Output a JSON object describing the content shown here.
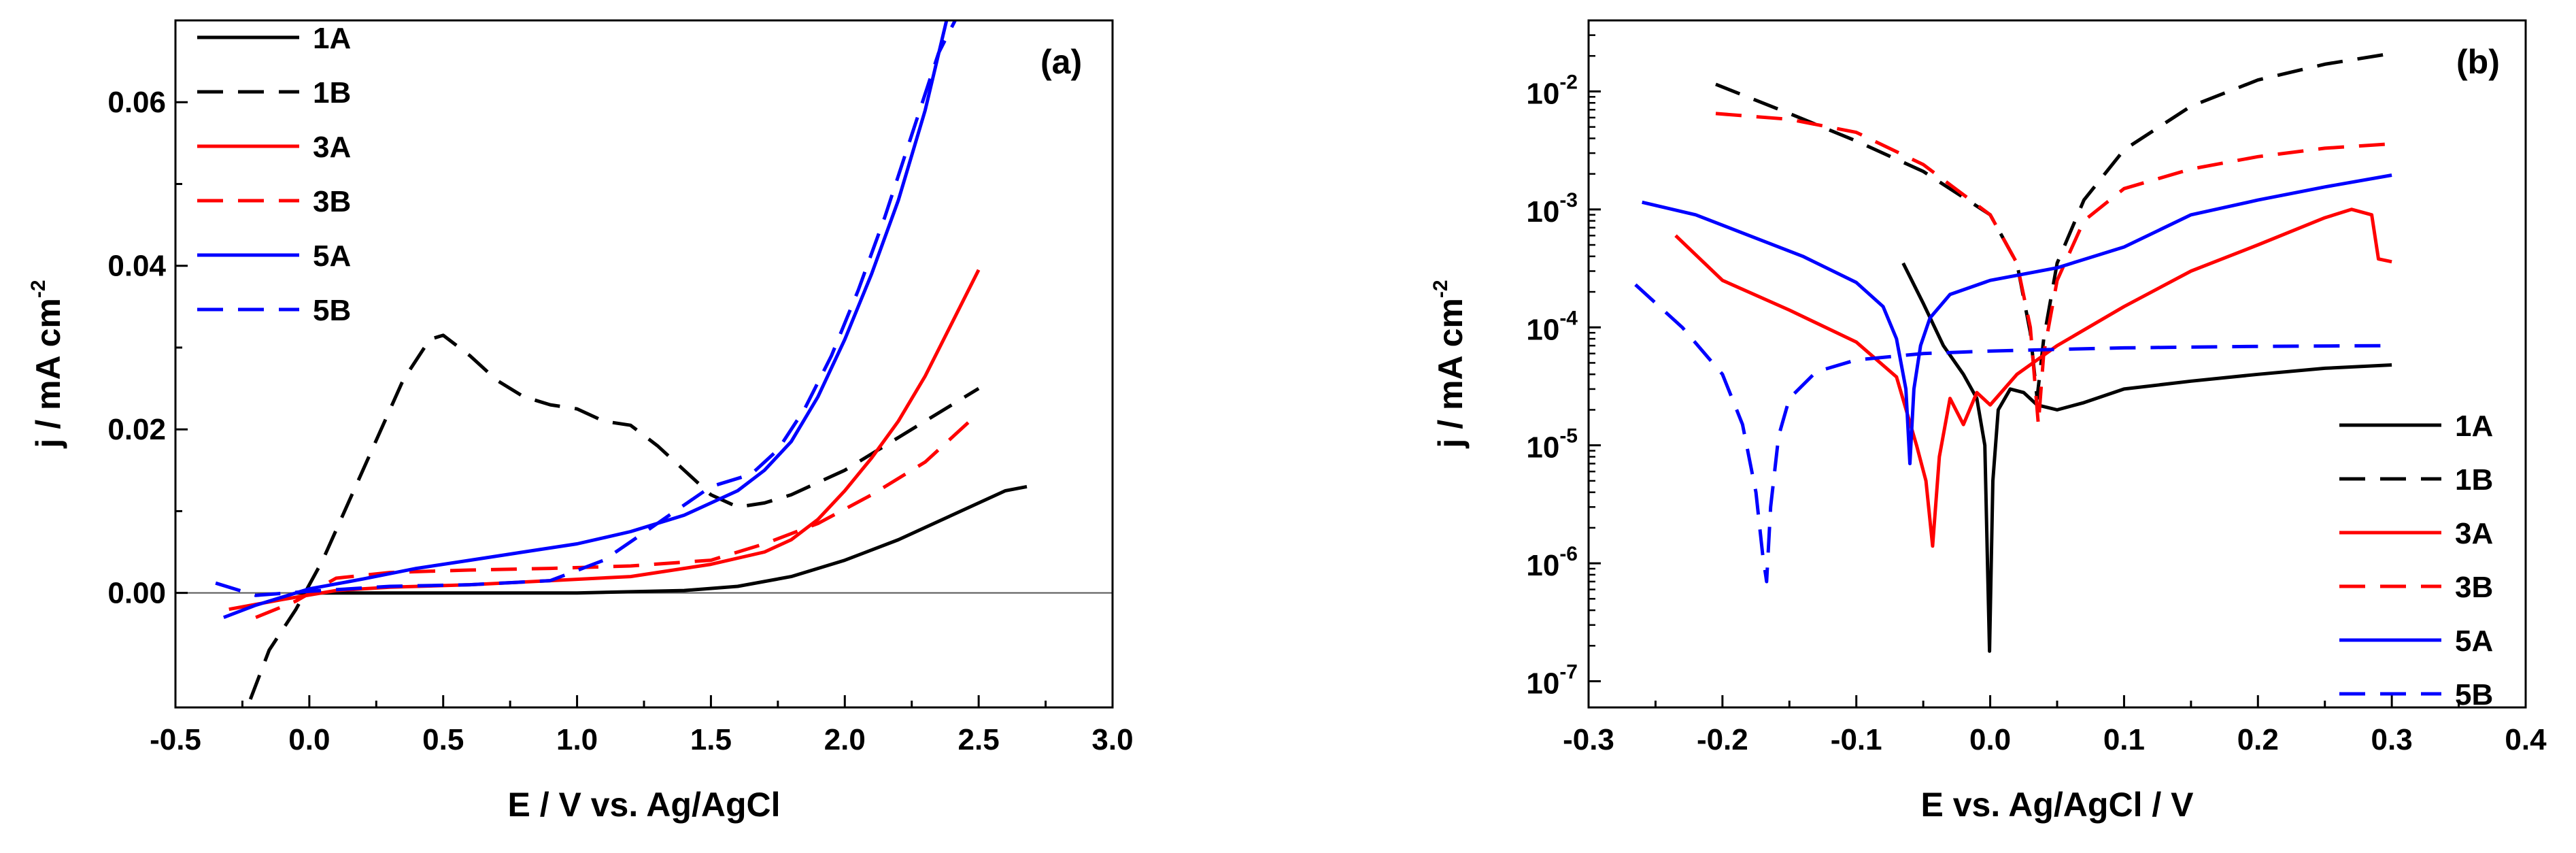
{
  "chart_data": [
    {
      "id": "a",
      "type": "line",
      "panel_label": "(a)",
      "xlabel": "E / V vs. Ag/AgCl",
      "ylabel": "j / mA cm",
      "ylabel_exponent": "-2",
      "xlim": [
        -0.5,
        3.0
      ],
      "ylim": [
        -0.014,
        0.07
      ],
      "x_ticks": [
        -0.5,
        0.0,
        0.5,
        1.0,
        1.5,
        2.0,
        2.5,
        3.0
      ],
      "x_tick_labels": [
        "-0.5",
        "0.0",
        "0.5",
        "1.0",
        "1.5",
        "2.0",
        "2.5",
        "3.0"
      ],
      "y_ticks": [
        0.0,
        0.02,
        0.04,
        0.06
      ],
      "y_tick_labels": [
        "0.00",
        "0.02",
        "0.04",
        "0.06"
      ],
      "zero_line": true,
      "legend_position": "top-left",
      "series": [
        {
          "name": "1A",
          "color": "#000000",
          "dash": "solid",
          "x": [
            -0.05,
            0.5,
            1.0,
            1.4,
            1.6,
            1.8,
            2.0,
            2.2,
            2.4,
            2.6,
            2.68
          ],
          "y": [
            0.0,
            0.0,
            0.0,
            0.0003,
            0.0008,
            0.002,
            0.004,
            0.0065,
            0.0095,
            0.0125,
            0.013
          ]
        },
        {
          "name": "1B",
          "color": "#000000",
          "dash": "dashed",
          "x": [
            -0.22,
            -0.15,
            -0.05,
            0.05,
            0.2,
            0.35,
            0.45,
            0.5,
            0.6,
            0.7,
            0.8,
            0.9,
            1.0,
            1.1,
            1.2,
            1.3,
            1.4,
            1.5,
            1.6,
            1.7,
            1.8,
            1.9,
            2.0,
            2.1,
            2.2,
            2.35,
            2.5
          ],
          "y": [
            -0.013,
            -0.007,
            -0.002,
            0.004,
            0.015,
            0.026,
            0.031,
            0.0315,
            0.029,
            0.026,
            0.024,
            0.023,
            0.0225,
            0.021,
            0.0205,
            0.018,
            0.015,
            0.012,
            0.0105,
            0.011,
            0.012,
            0.0135,
            0.015,
            0.017,
            0.019,
            0.022,
            0.025
          ]
        },
        {
          "name": "3A",
          "color": "#ff0000",
          "dash": "solid",
          "x": [
            -0.3,
            -0.1,
            0.1,
            0.3,
            0.6,
            0.9,
            1.2,
            1.5,
            1.7,
            1.8,
            1.9,
            2.0,
            2.1,
            2.2,
            2.3,
            2.4,
            2.5
          ],
          "y": [
            -0.002,
            -0.0008,
            0.0003,
            0.0007,
            0.001,
            0.0015,
            0.002,
            0.0035,
            0.005,
            0.0065,
            0.009,
            0.0125,
            0.0165,
            0.021,
            0.0265,
            0.033,
            0.0395
          ]
        },
        {
          "name": "3B",
          "color": "#ff0000",
          "dash": "dashed",
          "x": [
            -0.2,
            -0.05,
            0.1,
            0.3,
            0.6,
            0.9,
            1.2,
            1.5,
            1.7,
            1.9,
            2.1,
            2.3,
            2.5
          ],
          "y": [
            -0.003,
            -0.001,
            0.0018,
            0.0025,
            0.0028,
            0.003,
            0.0033,
            0.004,
            0.006,
            0.0085,
            0.012,
            0.016,
            0.022
          ]
        },
        {
          "name": "5A",
          "color": "#0000ff",
          "dash": "solid",
          "x": [
            -0.32,
            -0.2,
            0.0,
            0.2,
            0.4,
            0.6,
            0.8,
            1.0,
            1.2,
            1.4,
            1.6,
            1.7,
            1.8,
            1.9,
            2.0,
            2.1,
            2.2,
            2.3,
            2.38
          ],
          "y": [
            -0.003,
            -0.0015,
            0.0005,
            0.0017,
            0.003,
            0.004,
            0.005,
            0.006,
            0.0075,
            0.0095,
            0.0125,
            0.015,
            0.0185,
            0.024,
            0.031,
            0.039,
            0.048,
            0.059,
            0.07
          ]
        },
        {
          "name": "5B",
          "color": "#0000ff",
          "dash": "dashed",
          "x": [
            -0.35,
            -0.2,
            0.0,
            0.3,
            0.6,
            0.9,
            1.1,
            1.3,
            1.5,
            1.65,
            1.75,
            1.85,
            1.95,
            2.05,
            2.15,
            2.25,
            2.35,
            2.42
          ],
          "y": [
            0.0012,
            -0.0003,
            0.0002,
            0.0008,
            0.001,
            0.0015,
            0.004,
            0.0085,
            0.013,
            0.0145,
            0.0175,
            0.0225,
            0.029,
            0.037,
            0.046,
            0.056,
            0.066,
            0.0705
          ]
        }
      ]
    },
    {
      "id": "b",
      "type": "line",
      "panel_label": "(b)",
      "xlabel": "E vs. Ag/AgCl / V",
      "ylabel": "j / mA cm",
      "ylabel_exponent": "-2",
      "xlim": [
        -0.3,
        0.4
      ],
      "ylim": [
        6e-08,
        0.04
      ],
      "yscale": "log",
      "x_ticks": [
        -0.3,
        -0.2,
        -0.1,
        0.0,
        0.1,
        0.2,
        0.3,
        0.4
      ],
      "x_tick_labels": [
        "-0.3",
        "-0.2",
        "-0.1",
        "0.0",
        "0.1",
        "0.2",
        "0.3",
        "0.4"
      ],
      "y_ticks_exp": [
        -7,
        -6,
        -5,
        -4,
        -3,
        -2
      ],
      "y_tick_base": "10",
      "y_tick_exponent_labels": [
        "-7",
        "-6",
        "-5",
        "-4",
        "-3",
        "-2"
      ],
      "legend_position": "bottom-right",
      "series": [
        {
          "name": "1A",
          "color": "#000000",
          "dash": "solid",
          "x": [
            -0.065,
            -0.05,
            -0.035,
            -0.02,
            -0.01,
            -0.004,
            -0.002,
            -0.0005,
            0.002,
            0.006,
            0.015,
            0.025,
            0.035,
            0.05,
            0.07,
            0.1,
            0.15,
            0.2,
            0.25,
            0.3
          ],
          "y": [
            0.00035,
            0.00016,
            7e-05,
            4e-05,
            2.5e-05,
            1e-05,
            1e-06,
            1.8e-07,
            5e-06,
            2e-05,
            3e-05,
            2.8e-05,
            2.2e-05,
            2e-05,
            2.3e-05,
            3e-05,
            3.5e-05,
            4e-05,
            4.5e-05,
            4.8e-05
          ]
        },
        {
          "name": "1B",
          "color": "#000000",
          "dash": "dashed",
          "x": [
            -0.205,
            -0.15,
            -0.1,
            -0.05,
            0.0,
            0.02,
            0.03,
            0.035,
            0.04,
            0.05,
            0.07,
            0.1,
            0.15,
            0.2,
            0.25,
            0.3
          ],
          "y": [
            0.0115,
            0.0065,
            0.0038,
            0.0021,
            0.0009,
            0.00035,
            9e-05,
            2.5e-05,
            8e-05,
            0.00035,
            0.0012,
            0.0032,
            0.0075,
            0.0125,
            0.017,
            0.021
          ]
        },
        {
          "name": "3A",
          "color": "#ff0000",
          "dash": "solid",
          "x": [
            -0.235,
            -0.2,
            -0.15,
            -0.1,
            -0.07,
            -0.055,
            -0.048,
            -0.043,
            -0.038,
            -0.03,
            -0.02,
            -0.01,
            0.0,
            0.02,
            0.05,
            0.1,
            0.15,
            0.2,
            0.25,
            0.27,
            0.285,
            0.29,
            0.3
          ],
          "y": [
            0.0006,
            0.00025,
            0.00014,
            7.5e-05,
            3.8e-05,
            1e-05,
            5e-06,
            1.4e-06,
            8e-06,
            2.5e-05,
            1.5e-05,
            2.8e-05,
            2.2e-05,
            4e-05,
            7e-05,
            0.00015,
            0.0003,
            0.0005,
            0.00085,
            0.001,
            0.0009,
            0.00038,
            0.00036
          ]
        },
        {
          "name": "3B",
          "color": "#ff0000",
          "dash": "dashed",
          "x": [
            -0.205,
            -0.15,
            -0.1,
            -0.05,
            0.0,
            0.02,
            0.03,
            0.036,
            0.04,
            0.05,
            0.07,
            0.1,
            0.15,
            0.2,
            0.25,
            0.3
          ],
          "y": [
            0.0065,
            0.0058,
            0.0045,
            0.0024,
            0.0009,
            0.00035,
            0.0001,
            1.5e-05,
            6e-05,
            0.00025,
            0.0008,
            0.0015,
            0.0022,
            0.0028,
            0.0033,
            0.0036
          ]
        },
        {
          "name": "5A",
          "color": "#0000ff",
          "dash": "solid",
          "x": [
            -0.26,
            -0.22,
            -0.18,
            -0.14,
            -0.1,
            -0.08,
            -0.07,
            -0.063,
            -0.06,
            -0.057,
            -0.052,
            -0.045,
            -0.03,
            0.0,
            0.05,
            0.1,
            0.15,
            0.2,
            0.25,
            0.3
          ],
          "y": [
            0.00115,
            0.0009,
            0.0006,
            0.0004,
            0.00024,
            0.00015,
            8e-05,
            3e-05,
            7e-06,
            3e-05,
            7e-05,
            0.00012,
            0.00019,
            0.00025,
            0.00032,
            0.00048,
            0.0009,
            0.0012,
            0.00155,
            0.00195
          ]
        },
        {
          "name": "5B",
          "color": "#0000ff",
          "dash": "dashed",
          "x": [
            -0.265,
            -0.23,
            -0.2,
            -0.185,
            -0.175,
            -0.17,
            -0.167,
            -0.164,
            -0.158,
            -0.15,
            -0.13,
            -0.1,
            -0.05,
            0.0,
            0.05,
            0.1,
            0.2,
            0.3
          ],
          "y": [
            0.00023,
            0.0001,
            4e-05,
            1.5e-05,
            4e-06,
            1.2e-06,
            7e-07,
            3e-06,
            1.2e-05,
            2.5e-05,
            4.2e-05,
            5.3e-05,
            6e-05,
            6.3e-05,
            6.5e-05,
            6.7e-05,
            6.9e-05,
            7e-05
          ]
        }
      ]
    }
  ]
}
